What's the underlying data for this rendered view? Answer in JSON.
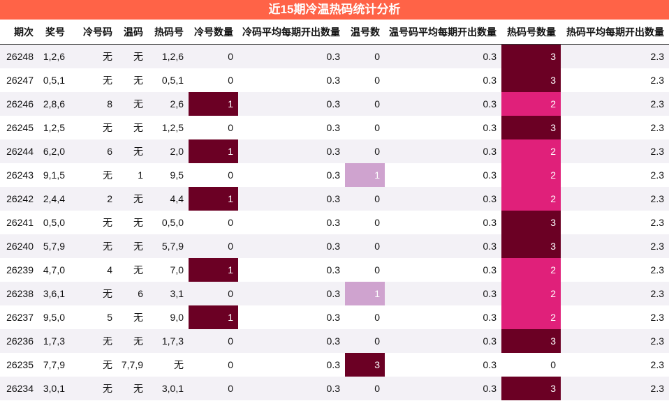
{
  "header": {
    "title": "近15期冷温热码统计分析"
  },
  "table": {
    "columns": [
      "期次",
      "奖号",
      "冷号码",
      "温码",
      "热码号",
      "冷号数量",
      "冷码平均每期开出数量",
      "温号数",
      "温号码平均每期开出数量",
      "热码号数量",
      "热码平均每期开出数量"
    ],
    "rows": [
      [
        "26248",
        "1,2,6",
        "无",
        "无",
        "1,2,6",
        "0",
        "0.3",
        "0",
        "0.3",
        "3",
        "2.3"
      ],
      [
        "26247",
        "0,5,1",
        "无",
        "无",
        "0,5,1",
        "0",
        "0.3",
        "0",
        "0.3",
        "3",
        "2.3"
      ],
      [
        "26246",
        "2,8,6",
        "8",
        "无",
        "2,6",
        "1",
        "0.3",
        "0",
        "0.3",
        "2",
        "2.3"
      ],
      [
        "26245",
        "1,2,5",
        "无",
        "无",
        "1,2,5",
        "0",
        "0.3",
        "0",
        "0.3",
        "3",
        "2.3"
      ],
      [
        "26244",
        "6,2,0",
        "6",
        "无",
        "2,0",
        "1",
        "0.3",
        "0",
        "0.3",
        "2",
        "2.3"
      ],
      [
        "26243",
        "9,1,5",
        "无",
        "1",
        "9,5",
        "0",
        "0.3",
        "1",
        "0.3",
        "2",
        "2.3"
      ],
      [
        "26242",
        "2,4,4",
        "2",
        "无",
        "4,4",
        "1",
        "0.3",
        "0",
        "0.3",
        "2",
        "2.3"
      ],
      [
        "26241",
        "0,5,0",
        "无",
        "无",
        "0,5,0",
        "0",
        "0.3",
        "0",
        "0.3",
        "3",
        "2.3"
      ],
      [
        "26240",
        "5,7,9",
        "无",
        "无",
        "5,7,9",
        "0",
        "0.3",
        "0",
        "0.3",
        "3",
        "2.3"
      ],
      [
        "26239",
        "4,7,0",
        "4",
        "无",
        "7,0",
        "1",
        "0.3",
        "0",
        "0.3",
        "2",
        "2.3"
      ],
      [
        "26238",
        "3,6,1",
        "无",
        "6",
        "3,1",
        "0",
        "0.3",
        "1",
        "0.3",
        "2",
        "2.3"
      ],
      [
        "26237",
        "9,5,0",
        "5",
        "无",
        "9,0",
        "1",
        "0.3",
        "0",
        "0.3",
        "2",
        "2.3"
      ],
      [
        "26236",
        "1,7,3",
        "无",
        "无",
        "1,7,3",
        "0",
        "0.3",
        "0",
        "0.3",
        "3",
        "2.3"
      ],
      [
        "26235",
        "7,7,9",
        "无",
        "7,7,9",
        "无",
        "0",
        "0.3",
        "3",
        "0.3",
        "0",
        "2.3"
      ],
      [
        "26234",
        "3,0,1",
        "无",
        "无",
        "3,0,1",
        "0",
        "0.3",
        "0",
        "0.3",
        "3",
        "2.3"
      ]
    ],
    "highlight": [
      {
        "column": 5,
        "colors": {
          "1": "#6b0024"
        }
      },
      {
        "column": 7,
        "colors": {
          "1": "#cfa3cf",
          "3": "#6b0024"
        }
      },
      {
        "column": 9,
        "colors": {
          "2": "#e0207a",
          "3": "#6b0024"
        }
      }
    ]
  }
}
